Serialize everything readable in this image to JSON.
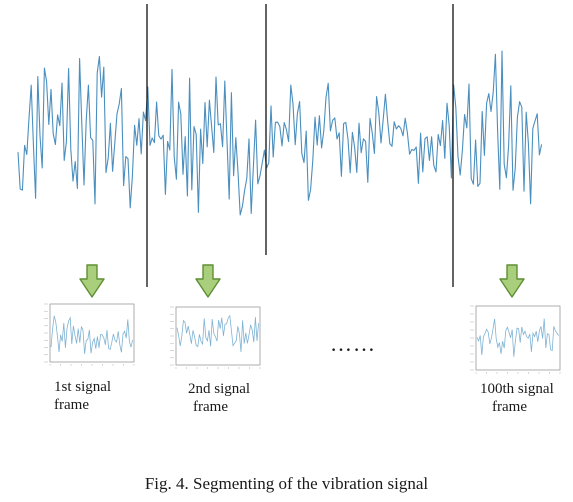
{
  "colors": {
    "signal": "#4b8fbf",
    "frame_signal": "#7fb3d4",
    "divider": "#111111",
    "arrow_fill": "#a9cf7d",
    "arrow_stroke": "#5f8f33",
    "frame_border": "#9a9a9a"
  },
  "signal_frames": [
    {
      "label_line1": "1st signal",
      "label_line2": "frame"
    },
    {
      "label_line1": "2nd signal",
      "label_line2": "frame"
    },
    {
      "label_line1": "100th signal",
      "label_line2": "frame"
    }
  ],
  "ellipsis": "……",
  "caption": "Fig. 4.  Segmenting of the vibration signal",
  "icons": [
    "arrow-down-icon"
  ]
}
